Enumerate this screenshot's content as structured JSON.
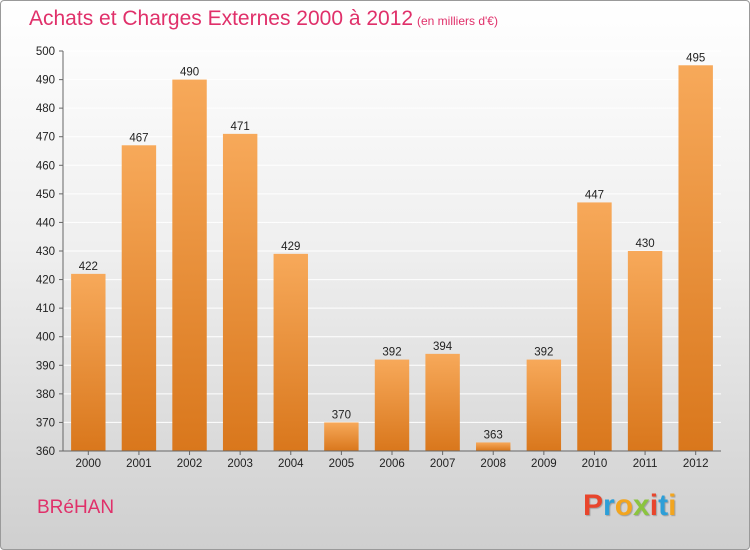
{
  "header": {
    "title": "Achats et Charges Externes 2000 à 2012",
    "subtitle": "(en milliers d'€)"
  },
  "footer": {
    "commune": "BRéHAN",
    "brand": "Proxiti",
    "brand_colors": [
      "#e8452c",
      "#2d9fd8",
      "#f2a51f",
      "#8bc43f",
      "#e8452c",
      "#2d9fd8",
      "#f2a51f"
    ]
  },
  "colors": {
    "bar_light": "#f7a95a",
    "bar_dark": "#d9771c",
    "grid": "#ffffff",
    "accent": "#e0306a"
  },
  "chart_data": {
    "type": "bar",
    "title": "Achats et Charges Externes 2000 à 2012",
    "subtitle": "(en milliers d'€)",
    "xlabel": "",
    "ylabel": "",
    "categories": [
      "2000",
      "2001",
      "2002",
      "2003",
      "2004",
      "2005",
      "2006",
      "2007",
      "2008",
      "2009",
      "2010",
      "2011",
      "2012"
    ],
    "values": [
      422,
      467,
      490,
      471,
      429,
      370,
      392,
      394,
      363,
      392,
      447,
      430,
      495
    ],
    "ylim": [
      360,
      500
    ],
    "yticks": [
      360,
      370,
      380,
      390,
      400,
      410,
      420,
      430,
      440,
      450,
      460,
      470,
      480,
      490,
      500
    ],
    "grid": true,
    "data_labels": true
  }
}
